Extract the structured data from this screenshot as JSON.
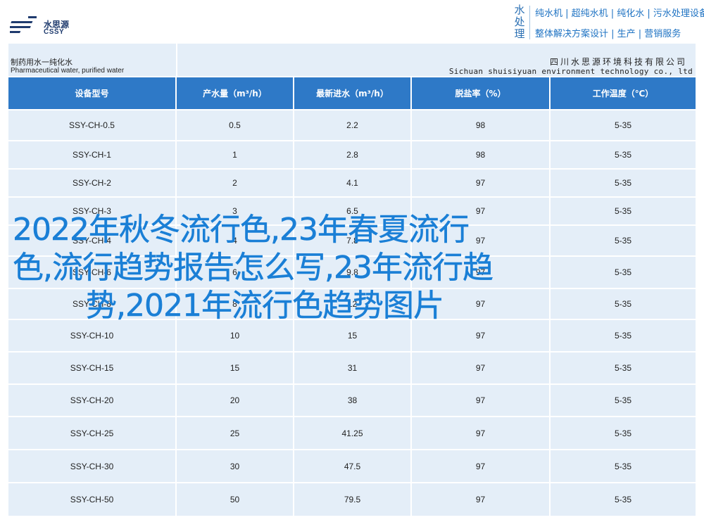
{
  "brand": {
    "logo_cn": "水思源",
    "logo_en": "CSSY",
    "vertical": [
      "水",
      "处",
      "理"
    ],
    "slogan_line1": "纯水机 | 超纯水机 | 纯化水 | 污水处理设备",
    "slogan_line2": "整体解决方案设计 | 生产 | 营销服务"
  },
  "title_bar": {
    "left_cn": "制药用水一纯化水",
    "left_en": "Pharmaceutical water, purified water",
    "right_cn": "四川水思源环境科技有限公司",
    "right_en": "Sichuan shuisiyuan environment technology co., ltd"
  },
  "table": {
    "headers": [
      "设备型号",
      "产水量（m³/h）",
      "最新进水（m³/h）",
      "脱盐率（%）",
      "工作温度（℃）"
    ],
    "rows": [
      [
        "SSY-CH-0.5",
        "0.5",
        "2.2",
        "98",
        "5-35"
      ],
      [
        "SSY-CH-1",
        "1",
        "2.8",
        "98",
        "5-35"
      ],
      [
        "SSY-CH-2",
        "2",
        "4.1",
        "97",
        "5-35"
      ],
      [
        "SSY-CH-3",
        "3",
        "6.5",
        "97",
        "5-35"
      ],
      [
        "SSY-CH-4",
        "4",
        "7.8",
        "97",
        "5-35"
      ],
      [
        "SSY-CH-6",
        "6",
        "9.8",
        "97",
        "5-35"
      ],
      [
        "SSY-CH-8",
        "8",
        "12",
        "97",
        "5-35"
      ],
      [
        "SSY-CH-10",
        "10",
        "15",
        "97",
        "5-35"
      ],
      [
        "SSY-CH-15",
        "15",
        "31",
        "97",
        "5-35"
      ],
      [
        "SSY-CH-20",
        "20",
        "38",
        "97",
        "5-35"
      ],
      [
        "SSY-CH-25",
        "25",
        "41.25",
        "97",
        "5-35"
      ],
      [
        "SSY-CH-30",
        "30",
        "47.5",
        "97",
        "5-35"
      ],
      [
        "SSY-CH-50",
        "50",
        "79.5",
        "97",
        "5-35"
      ]
    ]
  },
  "overlay": {
    "line1": "2022年秋冬流行色,23年春夏流行",
    "line2": "色,流行趋势报告怎么写,23年流行趋",
    "line3": "势,2021年流行色趋势图片"
  },
  "colors": {
    "header_blue": "#2e79c7",
    "row_bg": "#e4eef8",
    "overlay_text": "#1a7fd6",
    "slogan": "#1f73c3"
  }
}
